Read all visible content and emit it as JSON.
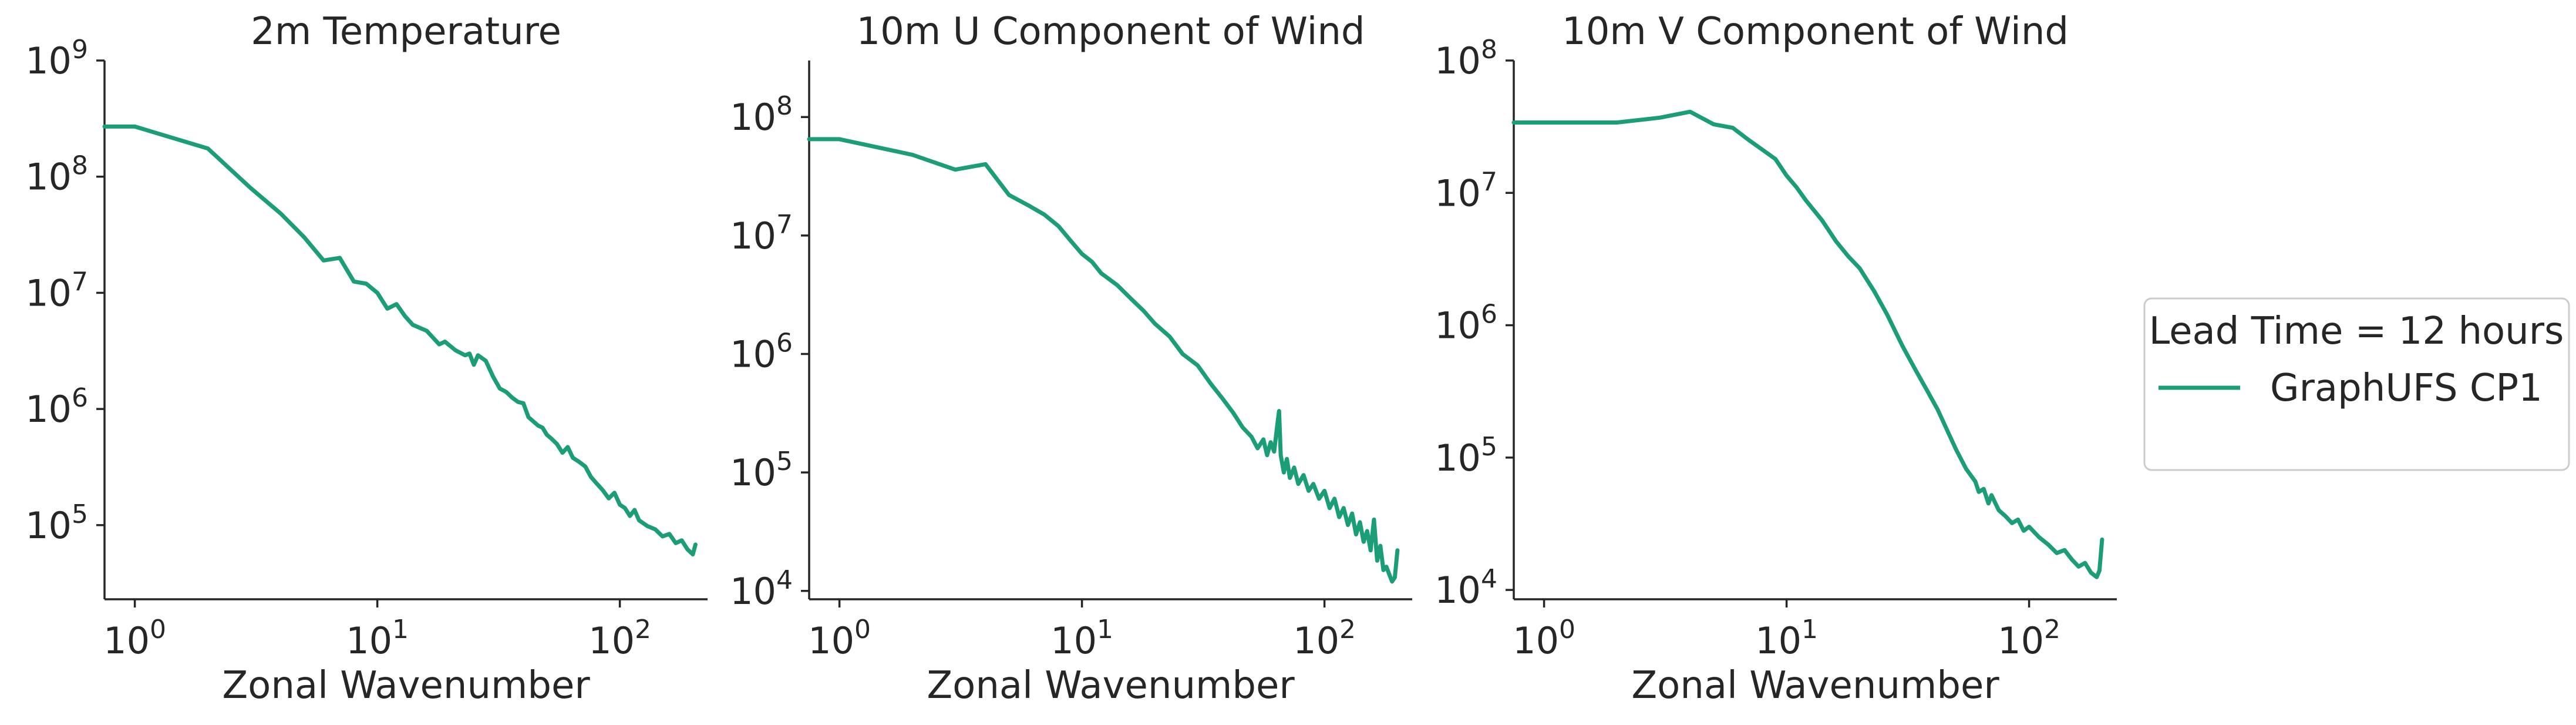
{
  "legend": {
    "title": "Lead Time = 12 hours",
    "entries": [
      {
        "label": "GraphUFS CP1",
        "color": "#1b9e77"
      }
    ]
  },
  "chart_data": [
    {
      "type": "line",
      "title": "2m Temperature",
      "xlabel": "Zonal Wavenumber",
      "ylabel": "",
      "xscale": "log",
      "yscale": "log",
      "xlim": [
        0.75,
        230
      ],
      "ylim": [
        23000,
        1000000000
      ],
      "xticks": [
        {
          "value": 1,
          "base": "10",
          "exp": "0"
        },
        {
          "value": 10,
          "base": "10",
          "exp": "1"
        },
        {
          "value": 100,
          "base": "10",
          "exp": "2"
        }
      ],
      "yticks": [
        {
          "value": 100000,
          "base": "10",
          "exp": "5"
        },
        {
          "value": 1000000,
          "base": "10",
          "exp": "6"
        },
        {
          "value": 10000000,
          "base": "10",
          "exp": "7"
        },
        {
          "value": 100000000,
          "base": "10",
          "exp": "8"
        },
        {
          "value": 1000000000,
          "base": "10",
          "exp": "9"
        }
      ],
      "grid": false,
      "series": [
        {
          "name": "GraphUFS CP1",
          "color": "#1b9e77",
          "points": [
            [
              0.75,
              270000000
            ],
            [
              1,
              270000000
            ],
            [
              2,
              175000000
            ],
            [
              3,
              80000000
            ],
            [
              4,
              48000000
            ],
            [
              5,
              30000000
            ],
            [
              6,
              19000000
            ],
            [
              7,
              20000000
            ],
            [
              8,
              12500000
            ],
            [
              9,
              12000000
            ],
            [
              10,
              10000000
            ],
            [
              11,
              7300000
            ],
            [
              12,
              8000000
            ],
            [
              13,
              6300000
            ],
            [
              14,
              5300000
            ],
            [
              16,
              4700000
            ],
            [
              18,
              3600000
            ],
            [
              19,
              3800000
            ],
            [
              21,
              3200000
            ],
            [
              23,
              2900000
            ],
            [
              24,
              3000000
            ],
            [
              25,
              2400000
            ],
            [
              26,
              2900000
            ],
            [
              28,
              2600000
            ],
            [
              30,
              1900000
            ],
            [
              32,
              1500000
            ],
            [
              34,
              1400000
            ],
            [
              36,
              1250000
            ],
            [
              38,
              1150000
            ],
            [
              40,
              1120000
            ],
            [
              42,
              850000
            ],
            [
              44,
              780000
            ],
            [
              46,
              720000
            ],
            [
              48,
              690000
            ],
            [
              50,
              600000
            ],
            [
              52,
              560000
            ],
            [
              55,
              500000
            ],
            [
              58,
              420000
            ],
            [
              61,
              470000
            ],
            [
              64,
              380000
            ],
            [
              68,
              350000
            ],
            [
              72,
              320000
            ],
            [
              76,
              260000
            ],
            [
              80,
              230000
            ],
            [
              85,
              200000
            ],
            [
              90,
              170000
            ],
            [
              95,
              190000
            ],
            [
              100,
              150000
            ],
            [
              105,
              140000
            ],
            [
              110,
              120000
            ],
            [
              115,
              135000
            ],
            [
              120,
              110000
            ],
            [
              130,
              98000
            ],
            [
              140,
              92000
            ],
            [
              150,
              80000
            ],
            [
              160,
              84000
            ],
            [
              170,
              70000
            ],
            [
              180,
              74000
            ],
            [
              190,
              62000
            ],
            [
              200,
              56000
            ],
            [
              205,
              68000
            ]
          ]
        }
      ]
    },
    {
      "type": "line",
      "title": "10m U Component of Wind",
      "xlabel": "Zonal Wavenumber",
      "ylabel": "",
      "xscale": "log",
      "yscale": "log",
      "xlim": [
        0.75,
        230
      ],
      "ylim": [
        8500,
        300000000
      ],
      "xticks": [
        {
          "value": 1,
          "base": "10",
          "exp": "0"
        },
        {
          "value": 10,
          "base": "10",
          "exp": "1"
        },
        {
          "value": 100,
          "base": "10",
          "exp": "2"
        }
      ],
      "yticks": [
        {
          "value": 10000,
          "base": "10",
          "exp": "4"
        },
        {
          "value": 100000,
          "base": "10",
          "exp": "5"
        },
        {
          "value": 1000000,
          "base": "10",
          "exp": "6"
        },
        {
          "value": 10000000,
          "base": "10",
          "exp": "7"
        },
        {
          "value": 100000000,
          "base": "10",
          "exp": "8"
        }
      ],
      "grid": false,
      "series": [
        {
          "name": "GraphUFS CP1",
          "color": "#1b9e77",
          "points": [
            [
              0.75,
              65000000
            ],
            [
              1,
              65000000
            ],
            [
              2,
              48000000
            ],
            [
              3,
              36000000
            ],
            [
              4,
              40000000
            ],
            [
              5,
              22000000
            ],
            [
              6,
              18000000
            ],
            [
              7,
              15000000
            ],
            [
              8,
              12000000
            ],
            [
              9,
              9000000
            ],
            [
              10,
              7000000
            ],
            [
              11,
              6000000
            ],
            [
              12,
              4800000
            ],
            [
              14,
              3800000
            ],
            [
              16,
              2900000
            ],
            [
              18,
              2300000
            ],
            [
              20,
              1800000
            ],
            [
              23,
              1400000
            ],
            [
              26,
              1000000
            ],
            [
              30,
              800000
            ],
            [
              34,
              560000
            ],
            [
              38,
              420000
            ],
            [
              42,
              320000
            ],
            [
              46,
              240000
            ],
            [
              50,
              200000
            ],
            [
              53,
              160000
            ],
            [
              56,
              190000
            ],
            [
              58,
              140000
            ],
            [
              60,
              180000
            ],
            [
              62,
              150000
            ],
            [
              64,
              260000
            ],
            [
              65,
              330000
            ],
            [
              66,
              140000
            ],
            [
              68,
              100000
            ],
            [
              70,
              130000
            ],
            [
              72,
              90000
            ],
            [
              75,
              110000
            ],
            [
              78,
              80000
            ],
            [
              82,
              95000
            ],
            [
              86,
              70000
            ],
            [
              90,
              80000
            ],
            [
              95,
              60000
            ],
            [
              100,
              70000
            ],
            [
              105,
              50000
            ],
            [
              110,
              60000
            ],
            [
              115,
              42000
            ],
            [
              120,
              50000
            ],
            [
              125,
              36000
            ],
            [
              130,
              45000
            ],
            [
              135,
              30000
            ],
            [
              140,
              38000
            ],
            [
              145,
              26000
            ],
            [
              150,
              32000
            ],
            [
              155,
              22000
            ],
            [
              160,
              40000
            ],
            [
              165,
              18000
            ],
            [
              170,
              24000
            ],
            [
              175,
              15000
            ],
            [
              180,
              16000
            ],
            [
              190,
              12000
            ],
            [
              195,
              13000
            ],
            [
              200,
              22000
            ]
          ]
        }
      ]
    },
    {
      "type": "line",
      "title": "10m V Component of Wind",
      "xlabel": "Zonal Wavenumber",
      "ylabel": "",
      "xscale": "log",
      "yscale": "log",
      "xlim": [
        0.75,
        230
      ],
      "ylim": [
        8500,
        100000000
      ],
      "xticks": [
        {
          "value": 1,
          "base": "10",
          "exp": "0"
        },
        {
          "value": 10,
          "base": "10",
          "exp": "1"
        },
        {
          "value": 100,
          "base": "10",
          "exp": "2"
        }
      ],
      "yticks": [
        {
          "value": 10000,
          "base": "10",
          "exp": "4"
        },
        {
          "value": 100000,
          "base": "10",
          "exp": "5"
        },
        {
          "value": 1000000,
          "base": "10",
          "exp": "6"
        },
        {
          "value": 10000000,
          "base": "10",
          "exp": "7"
        },
        {
          "value": 100000000,
          "base": "10",
          "exp": "8"
        }
      ],
      "grid": false,
      "series": [
        {
          "name": "GraphUFS CP1",
          "color": "#1b9e77",
          "points": [
            [
              0.75,
              34000000
            ],
            [
              1,
              34000000
            ],
            [
              2,
              34000000
            ],
            [
              3,
              37000000
            ],
            [
              4,
              41000000
            ],
            [
              5,
              33000000
            ],
            [
              6,
              31000000
            ],
            [
              7,
              25000000
            ],
            [
              8,
              21000000
            ],
            [
              9,
              18000000
            ],
            [
              10,
              13500000
            ],
            [
              11,
              11000000
            ],
            [
              12,
              8800000
            ],
            [
              14,
              6200000
            ],
            [
              16,
              4300000
            ],
            [
              18,
              3300000
            ],
            [
              20,
              2700000
            ],
            [
              23,
              1800000
            ],
            [
              26,
              1200000
            ],
            [
              30,
              700000
            ],
            [
              34,
              460000
            ],
            [
              38,
              320000
            ],
            [
              42,
              230000
            ],
            [
              46,
              160000
            ],
            [
              50,
              115000
            ],
            [
              55,
              82000
            ],
            [
              60,
              66000
            ],
            [
              62,
              55000
            ],
            [
              65,
              58000
            ],
            [
              68,
              45000
            ],
            [
              70,
              52000
            ],
            [
              75,
              40000
            ],
            [
              80,
              36000
            ],
            [
              85,
              32000
            ],
            [
              90,
              34000
            ],
            [
              95,
              28000
            ],
            [
              100,
              30000
            ],
            [
              110,
              25000
            ],
            [
              120,
              22000
            ],
            [
              130,
              19000
            ],
            [
              140,
              20000
            ],
            [
              150,
              17000
            ],
            [
              160,
              15000
            ],
            [
              170,
              16000
            ],
            [
              180,
              13500
            ],
            [
              190,
              12500
            ],
            [
              195,
              14000
            ],
            [
              200,
              24000
            ]
          ]
        }
      ]
    }
  ]
}
